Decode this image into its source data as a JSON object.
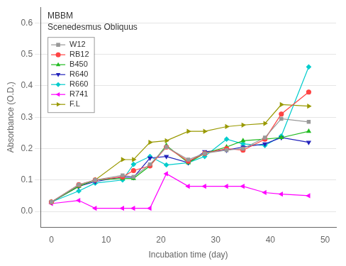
{
  "chart_data": {
    "type": "line",
    "annotations": [
      "MBBM",
      "Scenedesmus Obliquus"
    ],
    "xlabel": "Incubation time (day)",
    "ylabel": "Absorbance (O.D.)",
    "xlim": [
      -2,
      52
    ],
    "ylim": [
      -0.05,
      0.65
    ],
    "xticks": [
      0,
      10,
      20,
      30,
      40,
      50
    ],
    "yticks": [
      {
        "value": 0.0,
        "label": "0.0"
      },
      0.1,
      0.2,
      0.3,
      0.4,
      0.5,
      0.6
    ],
    "grid": "y",
    "legend": "upper left",
    "x": [
      0,
      5,
      8,
      13,
      15,
      18,
      21,
      25,
      28,
      32,
      35,
      39,
      42,
      47
    ],
    "series": [
      {
        "name": "W12",
        "color": "#999999",
        "marker": "square",
        "values": [
          0.03,
          0.085,
          0.1,
          0.115,
          0.11,
          0.15,
          0.205,
          0.165,
          0.185,
          0.195,
          0.2,
          0.235,
          0.295,
          0.285
        ]
      },
      {
        "name": "RB12",
        "color": "#FF4444",
        "marker": "circle",
        "values": [
          0.03,
          0.085,
          0.1,
          0.11,
          0.13,
          0.145,
          0.205,
          0.16,
          0.185,
          0.2,
          0.195,
          0.23,
          0.31,
          0.38
        ]
      },
      {
        "name": "B450",
        "color": "#22BB22",
        "marker": "triangle-up",
        "values": [
          0.03,
          0.08,
          0.1,
          0.105,
          0.105,
          0.145,
          0.21,
          0.155,
          0.185,
          0.205,
          0.225,
          0.23,
          0.235,
          0.255
        ]
      },
      {
        "name": "R640",
        "color": "#2222BB",
        "marker": "triangle-down",
        "values": [
          0.03,
          0.08,
          0.095,
          0.11,
          0.108,
          0.17,
          0.175,
          0.155,
          0.19,
          0.195,
          0.205,
          0.215,
          0.235,
          0.22
        ]
      },
      {
        "name": "R660",
        "color": "#00CCCC",
        "marker": "diamond",
        "values": [
          0.03,
          0.065,
          0.09,
          0.1,
          0.15,
          0.175,
          0.148,
          0.155,
          0.175,
          0.23,
          0.215,
          0.21,
          0.24,
          0.46
        ]
      },
      {
        "name": "R741",
        "color": "#FF00FF",
        "marker": "triangle-left",
        "values": [
          0.025,
          0.035,
          0.01,
          0.01,
          0.01,
          0.01,
          0.12,
          0.08,
          0.08,
          0.08,
          0.08,
          0.06,
          0.055,
          0.05
        ]
      },
      {
        "name": "F.L",
        "color": "#999900",
        "marker": "triangle-right",
        "values": [
          0.03,
          0.08,
          0.1,
          0.165,
          0.165,
          0.22,
          0.225,
          0.255,
          0.255,
          0.27,
          0.275,
          0.28,
          0.34,
          0.335
        ]
      }
    ]
  }
}
